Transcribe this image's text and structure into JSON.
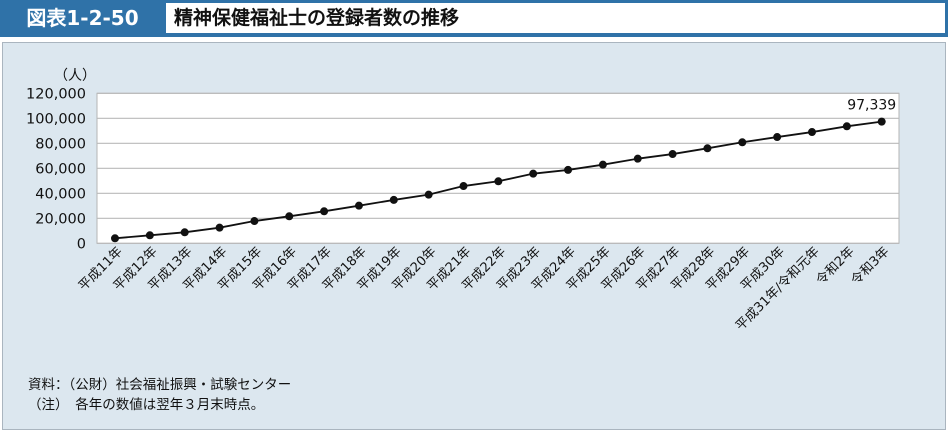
{
  "header": {
    "figure_number": "図表1-2-50",
    "title": "精神保健福祉士の登録者数の推移"
  },
  "chart_data": {
    "type": "line",
    "title": "精神保健福祉士の登録者数の推移",
    "ylabel": "（人）",
    "ylim": [
      0,
      120000
    ],
    "yticks": [
      0,
      20000,
      40000,
      60000,
      80000,
      100000,
      120000
    ],
    "ytick_labels": [
      "0",
      "20,000",
      "40,000",
      "60,000",
      "80,000",
      "100,000",
      "120,000"
    ],
    "grid": true,
    "categories": [
      "平成11年",
      "平成12年",
      "平成13年",
      "平成14年",
      "平成15年",
      "平成16年",
      "平成17年",
      "平成18年",
      "平成19年",
      "平成20年",
      "平成21年",
      "平成22年",
      "平成23年",
      "平成24年",
      "平成25年",
      "平成26年",
      "平成27年",
      "平成28年",
      "平成29年",
      "平成30年",
      "平成31年/令和元年",
      "令和2年",
      "令和3年"
    ],
    "values": [
      4000,
      6400,
      8800,
      12500,
      17800,
      21600,
      25600,
      30100,
      34700,
      38900,
      45800,
      49600,
      55700,
      58700,
      62900,
      67700,
      71400,
      76000,
      80800,
      85000,
      89000,
      93600,
      97339
    ],
    "annotation": "97,339",
    "line_color": "#111111"
  },
  "notes": {
    "source": "資料：（公財）社会福祉振興・試験センター",
    "note": "（注）　各年の数値は翌年３月末時点。"
  }
}
